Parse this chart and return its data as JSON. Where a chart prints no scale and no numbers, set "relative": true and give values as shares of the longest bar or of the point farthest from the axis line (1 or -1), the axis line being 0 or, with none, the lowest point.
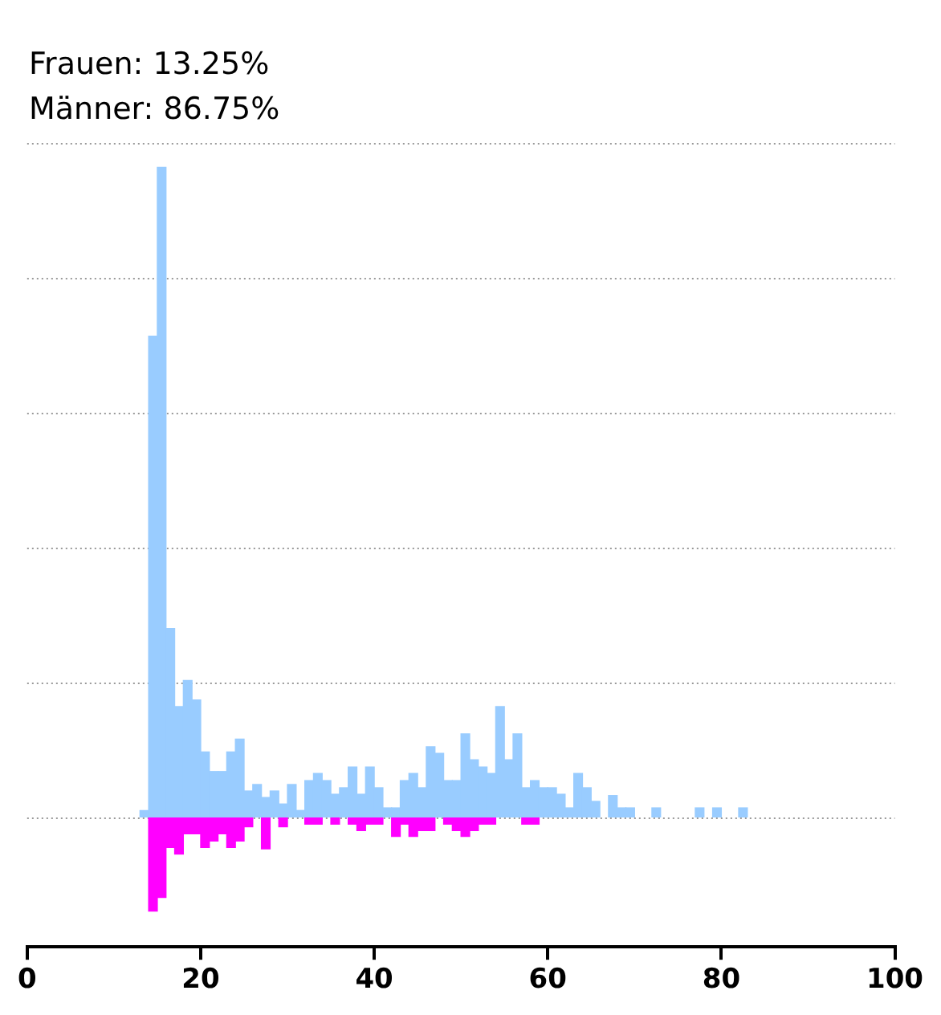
{
  "chart_data": {
    "type": "bar",
    "relative": true,
    "x": [
      13.5,
      14.5,
      15.5,
      16.5,
      17.5,
      18.5,
      19.5,
      20.5,
      21.5,
      22.5,
      23.5,
      24.5,
      25.5,
      26.5,
      27.5,
      28.5,
      29.5,
      30.5,
      31.5,
      32.5,
      33.5,
      34.5,
      35.5,
      36.5,
      37.5,
      38.5,
      39.5,
      40.5,
      41.5,
      42.5,
      43.5,
      44.5,
      45.5,
      46.5,
      47.5,
      48.5,
      49.5,
      50.5,
      51.5,
      52.5,
      53.5,
      54.5,
      55.5,
      56.5,
      57.5,
      58.5,
      59.5,
      60.5,
      61.5,
      62.5,
      63.5,
      64.5,
      65.5,
      66.5,
      67.5,
      68.5,
      69.5,
      70.5,
      71.5,
      72.5,
      73.5,
      74.5,
      75.5,
      76.5,
      77.5,
      78.5,
      79.5,
      80.5,
      81.5,
      82.5
    ],
    "series": [
      {
        "color": "#99ccff",
        "values": [
          0.01,
          0.74,
          1,
          0.29,
          0.17,
          0.21,
          0.18,
          0.1,
          0.07,
          0.07,
          0.1,
          0.12,
          0.04,
          0.05,
          0.03,
          0.04,
          0.02,
          0.05,
          0.01,
          0.056,
          0.067,
          0.056,
          0.035,
          0.045,
          0.077,
          0.035,
          0.077,
          0.045,
          0.014,
          0.014,
          0.056,
          0.067,
          0.045,
          0.108,
          0.098,
          0.056,
          0.056,
          0.128,
          0.088,
          0.077,
          0.067,
          0.17,
          0.088,
          0.128,
          0.045,
          0.056,
          0.045,
          0.045,
          0.035,
          0.014,
          0.067,
          0.045,
          0.024,
          null,
          0.033,
          0.014,
          0.014,
          null,
          null,
          0.014,
          null,
          null,
          null,
          null,
          0.014,
          null,
          0.014,
          null,
          null,
          0.014
        ]
      },
      {
        "color": "#ff00ff",
        "values": [
          null,
          -0.145,
          -0.124,
          -0.047,
          -0.057,
          -0.026,
          -0.026,
          -0.047,
          -0.037,
          -0.026,
          -0.047,
          -0.037,
          -0.015,
          null,
          -0.049,
          null,
          -0.015,
          null,
          null,
          -0.011,
          -0.011,
          null,
          -0.011,
          null,
          -0.011,
          -0.021,
          -0.011,
          -0.011,
          null,
          -0.03,
          -0.011,
          -0.03,
          -0.021,
          -0.021,
          null,
          -0.011,
          -0.021,
          -0.03,
          -0.021,
          -0.011,
          -0.011,
          null,
          null,
          null,
          -0.011,
          -0.011,
          null,
          null,
          null,
          null,
          null,
          null,
          null,
          null,
          null,
          null,
          null,
          null,
          null,
          null,
          null,
          null,
          null,
          null,
          null,
          null,
          null,
          null,
          null,
          null
        ]
      }
    ],
    "xlim": [
      0,
      100
    ],
    "xticks": [
      0,
      20,
      40,
      60,
      80,
      100
    ],
    "grid": "y",
    "legend": false,
    "annotations": [
      "Frauen: 13.25%",
      "Männer: 86.75%"
    ]
  }
}
